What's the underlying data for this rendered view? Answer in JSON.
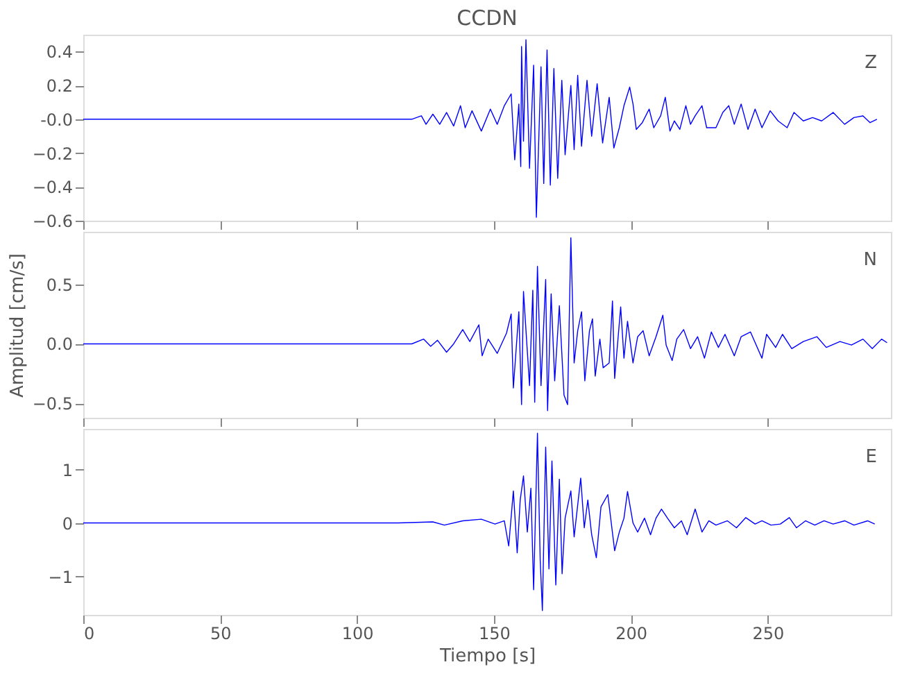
{
  "chart_data": [
    {
      "type": "line",
      "title": "CCDN",
      "xlim": [
        0,
        295
      ],
      "xticks": [
        0,
        50,
        100,
        150,
        200,
        250
      ],
      "ylim": [
        -0.6,
        0.5
      ],
      "yticks": [
        -0.6,
        -0.4,
        -0.2,
        {
          "value": 0,
          "label": "-0.0"
        },
        0.2,
        0.4
      ],
      "tick_labels": "y",
      "series": [
        {
          "name": "Z",
          "color": "#0000ff",
          "x": [
            0,
            115.1,
            120,
            123.5,
            125.2,
            127.7,
            130.2,
            132.7,
            135.3,
            137.8,
            139.5,
            142,
            145.4,
            148.7,
            151.2,
            153.8,
            156.3,
            157.6,
            159.1,
            159.8,
            160.1,
            160.8,
            161.7,
            163,
            164.5,
            165.5,
            167.2,
            168.2,
            169.4,
            170.6,
            171.9,
            173.3,
            174.8,
            176,
            178.1,
            179.3,
            180.6,
            182,
            184,
            185.7,
            187.7,
            189.7,
            192.1,
            193.8,
            195.8,
            197.5,
            199.6,
            200.8,
            202,
            204.2,
            206.7,
            208.4,
            210.9,
            212.6,
            214.3,
            215.9,
            217.9,
            220.1,
            221.8,
            223.5,
            226,
            227.7,
            231.1,
            233.6,
            235.8,
            237.8,
            240.3,
            242.8,
            245.4,
            247.9,
            250.9,
            253.8,
            257.1,
            259.6,
            263,
            266.4,
            269.7,
            273.9,
            278.1,
            281.5,
            284.8,
            287.4,
            289.9
          ],
          "values": [
            0,
            0,
            0,
            0.02,
            -0.03,
            0.03,
            -0.03,
            0.04,
            -0.04,
            0.08,
            -0.05,
            0.05,
            -0.07,
            0.06,
            -0.03,
            0.08,
            0.15,
            -0.24,
            0.09,
            -0.28,
            0.43,
            -0.13,
            0.47,
            -0.29,
            0.32,
            -0.58,
            0.31,
            -0.38,
            0.41,
            -0.39,
            0.3,
            -0.35,
            0.23,
            -0.21,
            0.2,
            -0.18,
            0.26,
            -0.16,
            0.23,
            -0.1,
            0.21,
            -0.14,
            0.13,
            -0.17,
            -0.05,
            0.08,
            0.19,
            0.09,
            -0.06,
            -0.02,
            0.06,
            -0.05,
            0.02,
            0.13,
            -0.07,
            -0.01,
            -0.06,
            0.08,
            -0.03,
            0.02,
            0.08,
            -0.05,
            -0.05,
            0.04,
            0.08,
            -0.03,
            0.09,
            -0.06,
            0.06,
            -0.05,
            0.05,
            -0.01,
            -0.05,
            0.04,
            -0.01,
            0.01,
            -0.01,
            0.04,
            -0.03,
            0.01,
            0.02,
            -0.02,
            0
          ]
        }
      ]
    },
    {
      "type": "line",
      "ylabel": "Amplitud [cm/s]",
      "xlim": [
        0,
        295
      ],
      "xticks": [
        0,
        50,
        100,
        150,
        200,
        250
      ],
      "ylim": [
        -0.62,
        0.94
      ],
      "yticks": [
        -0.5,
        {
          "value": 0,
          "label": "0.0"
        },
        0.5
      ],
      "tick_labels": "y",
      "series": [
        {
          "name": "N",
          "color": "#0000ff",
          "x": [
            0,
            115.1,
            120,
            124.3,
            126.9,
            129.4,
            132.7,
            135.3,
            138.6,
            141.2,
            144.5,
            145.7,
            147.9,
            151.2,
            154.6,
            156.3,
            157.1,
            159.1,
            160.1,
            160.8,
            163,
            164.2,
            164.9,
            165.9,
            167.2,
            168.9,
            169.6,
            170.9,
            172.2,
            173.9,
            175.6,
            176.9,
            178.1,
            179.3,
            180.6,
            182,
            183.2,
            184.9,
            186,
            187,
            188.7,
            189.9,
            192.1,
            193.3,
            194.1,
            196.3,
            197.5,
            198.8,
            200.8,
            202.5,
            204.5,
            206.7,
            209.2,
            211.7,
            212.9,
            215.1,
            216.8,
            219.3,
            221.8,
            224.4,
            226.9,
            229.4,
            232,
            234.4,
            237.8,
            240.3,
            243.7,
            247.9,
            249.6,
            252.9,
            255.4,
            258.8,
            263,
            268,
            271.4,
            276.4,
            280.6,
            284.8,
            288.2,
            291.6,
            293.6
          ],
          "values": [
            0,
            0,
            0,
            0.04,
            -0.02,
            0.03,
            -0.07,
            0,
            0.12,
            0.02,
            0.16,
            -0.1,
            0.04,
            -0.08,
            0.09,
            0.25,
            -0.37,
            0.27,
            -0.51,
            0.44,
            -0.35,
            0.45,
            -0.49,
            0.65,
            -0.35,
            0.54,
            -0.56,
            0.42,
            -0.31,
            0.32,
            -0.43,
            -0.51,
            0.89,
            -0.16,
            0.11,
            0.27,
            -0.31,
            0.11,
            0.21,
            -0.27,
            0.04,
            -0.2,
            -0.16,
            0.36,
            -0.29,
            0.31,
            -0.12,
            0.19,
            -0.16,
            0.06,
            0.11,
            -0.1,
            0.06,
            0.24,
            -0.01,
            -0.14,
            0.04,
            0.12,
            -0.04,
            0.06,
            -0.12,
            0.1,
            -0.03,
            0.08,
            -0.1,
            0.06,
            0.1,
            -0.12,
            0.08,
            -0.03,
            0.08,
            -0.04,
            0.02,
            0.06,
            -0.03,
            0.02,
            -0.01,
            0.04,
            -0.04,
            0.04,
            0.01
          ]
        }
      ]
    },
    {
      "type": "line",
      "xlabel": "Tiempo [s]",
      "xlim": [
        0,
        295
      ],
      "xticks": [
        0,
        50,
        100,
        150,
        200,
        250
      ],
      "ylim": [
        -1.72,
        1.76
      ],
      "yticks": [
        -1,
        0,
        1
      ],
      "series": [
        {
          "name": "E",
          "color": "#0000ff",
          "x": [
            0,
            115.1,
            127.7,
            131.9,
            138.6,
            145.4,
            150.4,
            153.8,
            155.4,
            157.1,
            158.5,
            159.6,
            160.8,
            162.2,
            163.5,
            164.5,
            165.9,
            166.9,
            167.7,
            168.9,
            170.1,
            171.2,
            172.6,
            173.9,
            174.9,
            176,
            178.1,
            179.3,
            181.7,
            183,
            184.3,
            185.7,
            187.4,
            189.1,
            191.6,
            194.1,
            195.8,
            197.5,
            198.8,
            200.8,
            202.5,
            205,
            207.2,
            209.2,
            211.2,
            213.4,
            215.9,
            218.5,
            220.6,
            223.5,
            226,
            228.5,
            231.1,
            235.3,
            238.6,
            242,
            245.4,
            247.9,
            251.2,
            254.6,
            257.9,
            260.5,
            263.8,
            267.2,
            270.6,
            273.9,
            278.1,
            281.5,
            286.5,
            289.1
          ],
          "values": [
            0,
            0,
            0.02,
            -0.04,
            0.04,
            0.07,
            -0.02,
            0.04,
            -0.43,
            0.6,
            -0.56,
            0.43,
            0.88,
            -0.17,
            0.65,
            -1.25,
            1.68,
            -0.69,
            -1.64,
            1.42,
            -0.86,
            1.16,
            -1.16,
            0.82,
            -0.95,
            0.09,
            0.6,
            -0.26,
            0.84,
            -0.09,
            0.43,
            -0.22,
            -0.65,
            0.3,
            0.53,
            -0.52,
            -0.17,
            0.09,
            0.59,
            0,
            -0.17,
            0.09,
            -0.22,
            0.09,
            0.26,
            0.09,
            -0.09,
            0.04,
            -0.22,
            0.26,
            -0.17,
            0.04,
            -0.04,
            0.04,
            -0.09,
            0.1,
            -0.02,
            0.04,
            -0.04,
            -0.02,
            0.1,
            -0.09,
            0.04,
            -0.04,
            0.04,
            -0.02,
            0.04,
            -0.04,
            0.04,
            -0.02
          ]
        }
      ]
    }
  ]
}
